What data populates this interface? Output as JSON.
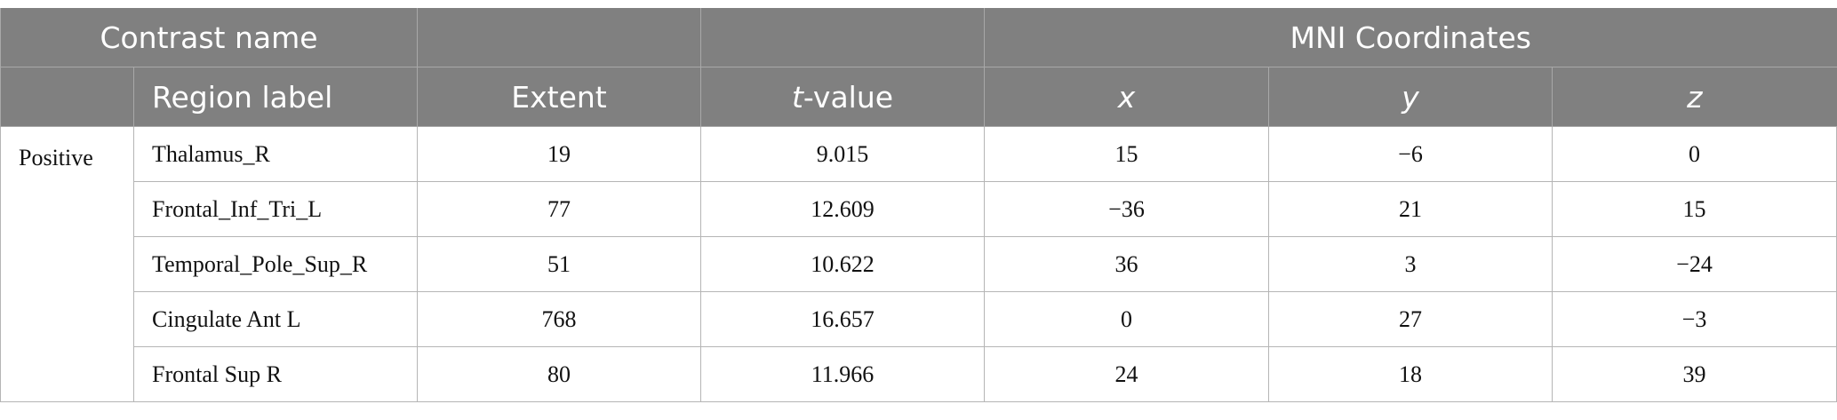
{
  "header": {
    "row1": {
      "contrast": "Contrast name",
      "mni": "MNI Coordinates"
    },
    "columns": [
      "Region label",
      "Extent",
      [
        "t",
        "-value"
      ],
      "x",
      "y",
      "z"
    ]
  },
  "table": {
    "group": "Positive",
    "rows": [
      [
        "Thalamus_R",
        "19",
        "9.015",
        "15",
        "−6",
        "0"
      ],
      [
        "Frontal_Inf_Tri_L",
        "77",
        "12.609",
        "−36",
        "21",
        "15"
      ],
      [
        "Temporal_Pole_Sup_R",
        "51",
        "10.622",
        "36",
        "3",
        "−24"
      ],
      [
        "Cingulate Ant L",
        "768",
        "16.657",
        "0",
        "27",
        "−3"
      ],
      [
        "Frontal Sup R",
        "80",
        "11.966",
        "24",
        "18",
        "39"
      ]
    ]
  }
}
